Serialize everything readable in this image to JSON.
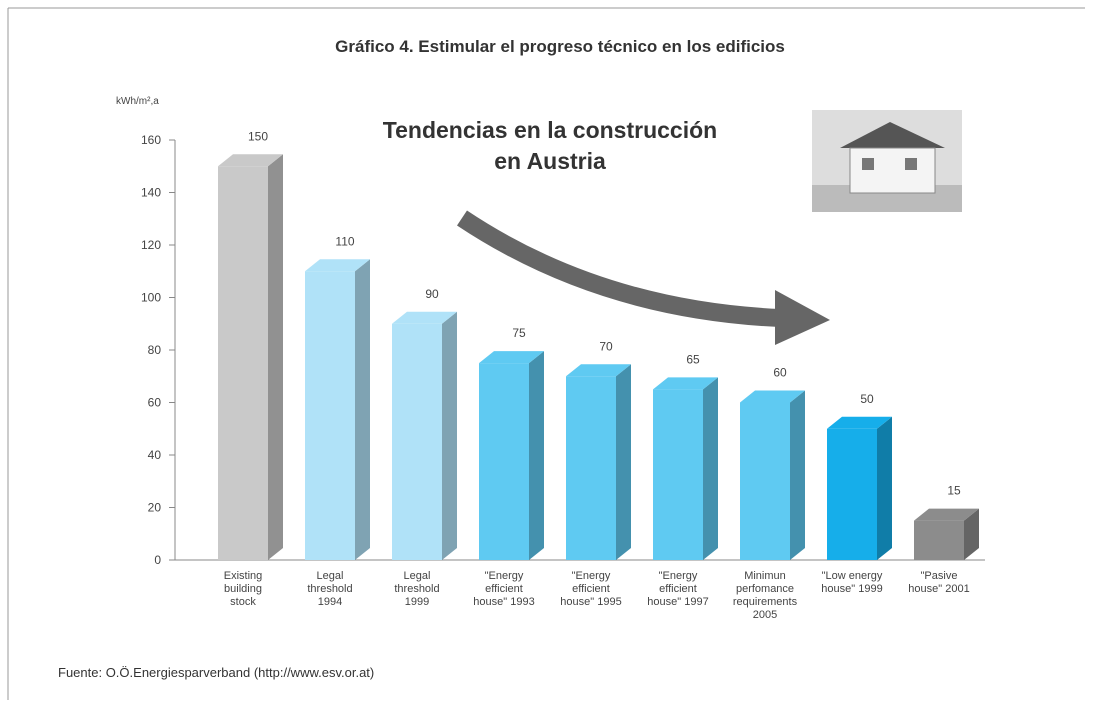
{
  "chart_data": {
    "type": "bar",
    "title": "Gráfico 4. Estimular el progreso técnico en los edificios",
    "y_label": "kWh/m²,a",
    "annotation": "Tendencias en la construcción\nen Austria",
    "source": "Fuente:  O.Ö.Energiesparverband  (http://www.esv.or.at)",
    "categories": [
      "Existing\nbuilding\nstock",
      "Legal\nthreshold\n1994",
      "Legal\nthreshold\n1999",
      "\"Energy\nefficient\nhouse\" 1993",
      "\"Energy\nefficient\nhouse\" 1995",
      "\"Energy\nefficient\nhouse\" 1997",
      "Minimun\nperfomance\nrequirements\n2005",
      "\"Low energy\nhouse\" 1999",
      "\"Pasive\nhouse\" 2001"
    ],
    "values": [
      150,
      110,
      90,
      75,
      70,
      65,
      60,
      50,
      15
    ],
    "colors": [
      "#c9c9c9",
      "#b0e2f8",
      "#b0e2f8",
      "#5fcaf2",
      "#5fcaf2",
      "#5fcaf2",
      "#5fcaf2",
      "#16aeea",
      "#8c8c8c"
    ],
    "ylim": [
      0,
      160
    ],
    "yticks": [
      0,
      20,
      40,
      60,
      80,
      100,
      120,
      140,
      160
    ]
  }
}
